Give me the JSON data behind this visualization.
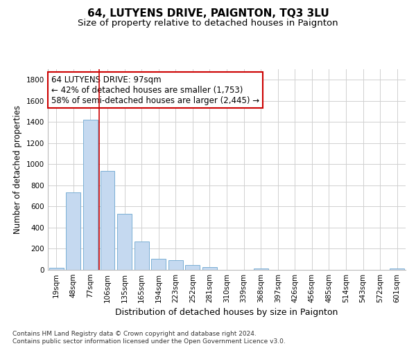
{
  "title": "64, LUTYENS DRIVE, PAIGNTON, TQ3 3LU",
  "subtitle": "Size of property relative to detached houses in Paignton",
  "xlabel": "Distribution of detached houses by size in Paignton",
  "ylabel": "Number of detached properties",
  "bar_color": "#c5d9f0",
  "bar_edge_color": "#7aafd4",
  "grid_color": "#d0d0d0",
  "background_color": "#ffffff",
  "categories": [
    "19sqm",
    "48sqm",
    "77sqm",
    "106sqm",
    "135sqm",
    "165sqm",
    "194sqm",
    "223sqm",
    "252sqm",
    "281sqm",
    "310sqm",
    "339sqm",
    "368sqm",
    "397sqm",
    "426sqm",
    "456sqm",
    "485sqm",
    "514sqm",
    "543sqm",
    "572sqm",
    "601sqm"
  ],
  "values": [
    20,
    735,
    1425,
    935,
    530,
    270,
    105,
    93,
    47,
    28,
    0,
    0,
    15,
    0,
    0,
    0,
    0,
    0,
    0,
    0,
    12
  ],
  "ylim": [
    0,
    1900
  ],
  "yticks": [
    0,
    200,
    400,
    600,
    800,
    1000,
    1200,
    1400,
    1600,
    1800
  ],
  "annotation_line1": "64 LUTYENS DRIVE: 97sqm",
  "annotation_line2": "← 42% of detached houses are smaller (1,753)",
  "annotation_line3": "58% of semi-detached houses are larger (2,445) →",
  "annotation_box_color": "#ffffff",
  "annotation_box_edge_color": "#cc0000",
  "vline_x_index": 2.5,
  "vline_color": "#cc0000",
  "footnote": "Contains HM Land Registry data © Crown copyright and database right 2024.\nContains public sector information licensed under the Open Government Licence v3.0.",
  "title_fontsize": 11,
  "subtitle_fontsize": 9.5,
  "ylabel_fontsize": 8.5,
  "xlabel_fontsize": 9,
  "tick_fontsize": 7.5,
  "annotation_fontsize": 8.5,
  "footnote_fontsize": 6.5
}
